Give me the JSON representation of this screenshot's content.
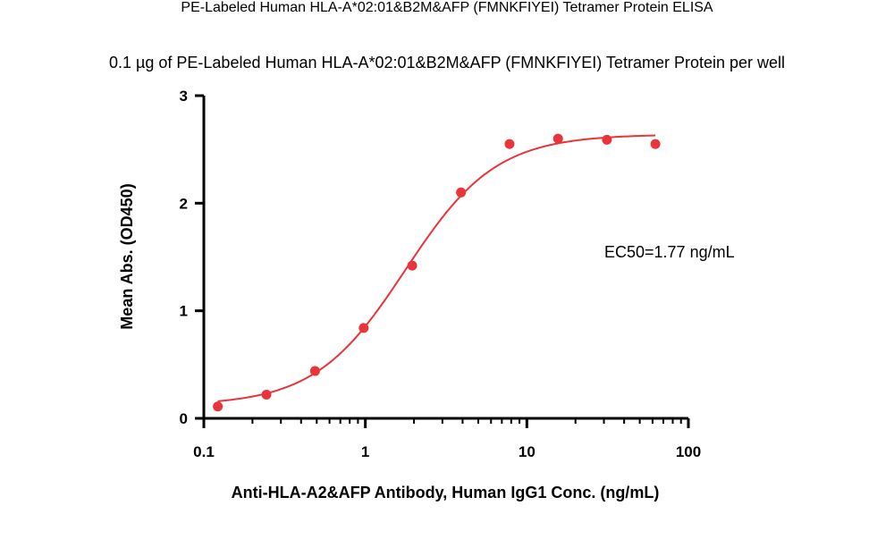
{
  "chart_data": {
    "type": "scatter",
    "title": "PE-Labeled Human HLA-A*02:01&B2M&AFP (FMNKFIYEI) Tetramer Protein ELISA",
    "subtitle": "0.1 µg of PE-Labeled Human HLA-A*02:01&B2M&AFP (FMNKFIYEI) Tetramer Protein per well",
    "xlabel": "Anti-HLA-A2&AFP Antibody, Human IgG1 Conc. (ng/mL)",
    "ylabel": "Mean Abs. (OD450)",
    "x_scale": "log",
    "xlim": [
      0.1,
      100
    ],
    "ylim": [
      0,
      3
    ],
    "x_ticks": [
      "0.1",
      "1",
      "10",
      "100"
    ],
    "y_ticks": [
      "0",
      "1",
      "2",
      "3"
    ],
    "series": [
      {
        "x": [
          0.122,
          0.244,
          0.488,
          0.977,
          1.95,
          3.91,
          7.81,
          15.6,
          31.3,
          62.5
        ],
        "y": [
          0.11,
          0.22,
          0.44,
          0.84,
          1.42,
          2.1,
          2.55,
          2.6,
          2.59,
          2.55
        ],
        "color": "#e8343a"
      }
    ],
    "fit_curve": {
      "type": "4PL",
      "bottom": 0.12,
      "top": 2.64,
      "ec50": 1.77,
      "hill": 1.55,
      "color": "#e8343a"
    },
    "annotation": "EC50=1.77  ng/mL",
    "grid": false,
    "legend": "none"
  }
}
